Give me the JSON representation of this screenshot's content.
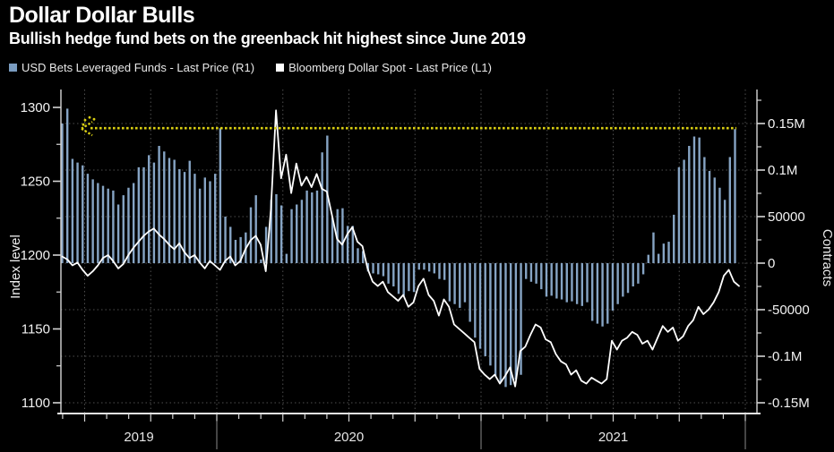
{
  "header": {
    "title": "Dollar Dollar Bulls",
    "subtitle": "Bullish hedge fund bets on the greenback hit highest since June 2019"
  },
  "legend": [
    {
      "label": "USD Bets Leveraged Funds - Last Price (R1)",
      "color": "#7a9cc0",
      "series": "bars"
    },
    {
      "label": "Bloomberg Dollar Spot - Last Price (L1)",
      "color": "#ffffff",
      "series": "line"
    }
  ],
  "chart_data": {
    "type": "combo",
    "background": "#000000",
    "grid": {
      "on": true,
      "color": "#4e4e4e",
      "vertical": "quarterly",
      "horizontal": "right-axis-ticks"
    },
    "x_axis": {
      "start_label": "2019",
      "end_label": "2021",
      "year_labels": [
        "2019",
        "2020",
        "2021"
      ],
      "range": [
        "2019-05",
        "2022-01"
      ],
      "minor_ticks": "monthly"
    },
    "left_axis": {
      "title": "Index level",
      "tick_labels": [
        "1300",
        "1250",
        "1200",
        "1150",
        "1100"
      ],
      "tick_values": [
        1300,
        1250,
        1200,
        1150,
        1100
      ],
      "minor_tick_values": [
        1275,
        1225,
        1175,
        1125
      ],
      "range": [
        1090,
        1313
      ]
    },
    "right_axis": {
      "title": "Contracts",
      "tick_labels": [
        "0.15M",
        "0.1M",
        "50000",
        "0",
        "-50000",
        "-0.1M",
        "-0.15M"
      ],
      "tick_values": [
        150000,
        100000,
        50000,
        0,
        -50000,
        -100000,
        -150000
      ],
      "minor_tick_step": 25000,
      "range": [
        -162000,
        187000
      ]
    },
    "annotation": {
      "type": "dotted-line-with-left-arrow",
      "value": 145000,
      "color": "#d9ce12",
      "meaning": "current bullish bet level equals June 2019 high"
    },
    "series": [
      {
        "name": "USD Bets Leveraged Funds - Last Price",
        "axis": "R1",
        "type": "bar",
        "color": "#86a4c4",
        "unit": "contracts",
        "values": [
          150000,
          166000,
          112000,
          108000,
          105000,
          96000,
          90000,
          86000,
          83000,
          80000,
          78000,
          63000,
          73000,
          81000,
          86000,
          103000,
          103000,
          116000,
          108000,
          126000,
          120000,
          113000,
          111000,
          101000,
          98000,
          110000,
          96000,
          80000,
          92000,
          88000,
          96000,
          145000,
          50000,
          39000,
          25000,
          28000,
          33000,
          60000,
          73000,
          4000,
          39000,
          68000,
          74000,
          62000,
          10000,
          58000,
          63000,
          68000,
          78000,
          76000,
          78000,
          119000,
          137000,
          49000,
          58000,
          59000,
          40000,
          40000,
          16000,
          13000,
          -9000,
          -11000,
          -12000,
          -14000,
          -22000,
          -25000,
          -33000,
          -35000,
          -30000,
          -31000,
          -7000,
          -7000,
          -9000,
          -11000,
          -17000,
          -18000,
          -41000,
          -44000,
          -48000,
          -42000,
          -63000,
          -80000,
          -92000,
          -100000,
          -110000,
          -121000,
          -128000,
          -133000,
          -131000,
          -125000,
          -120000,
          -17000,
          -20000,
          -22000,
          -28000,
          -36000,
          -35000,
          -38000,
          -39000,
          -42000,
          -41000,
          -44000,
          -46000,
          -42000,
          -62000,
          -65000,
          -68000,
          -65000,
          -51000,
          -44000,
          -36000,
          -32000,
          -25000,
          -22000,
          -12000,
          9000,
          33000,
          10000,
          21000,
          23000,
          52000,
          103000,
          111000,
          126000,
          136000,
          135000,
          114000,
          99000,
          92000,
          81000,
          68000,
          114000,
          144000
        ]
      },
      {
        "name": "Bloomberg Dollar Spot - Last Price",
        "axis": "L1",
        "type": "line",
        "color": "#ffffff",
        "values": [
          1199,
          1197,
          1193,
          1195,
          1190,
          1186,
          1189,
          1193,
          1198,
          1200,
          1196,
          1191,
          1194,
          1200,
          1205,
          1209,
          1213,
          1216,
          1218,
          1214,
          1211,
          1207,
          1204,
          1208,
          1202,
          1198,
          1200,
          1195,
          1191,
          1196,
          1193,
          1190,
          1196,
          1199,
          1193,
          1196,
          1204,
          1210,
          1213,
          1207,
          1189,
          1231,
          1298,
          1252,
          1268,
          1242,
          1262,
          1247,
          1253,
          1246,
          1255,
          1245,
          1243,
          1227,
          1211,
          1207,
          1214,
          1219,
          1209,
          1206,
          1191,
          1182,
          1179,
          1182,
          1175,
          1172,
          1169,
          1173,
          1165,
          1168,
          1179,
          1184,
          1173,
          1169,
          1159,
          1170,
          1165,
          1153,
          1150,
          1147,
          1144,
          1141,
          1123,
          1119,
          1116,
          1119,
          1113,
          1118,
          1124,
          1111,
          1135,
          1138,
          1146,
          1153,
          1151,
          1143,
          1141,
          1133,
          1128,
          1126,
          1119,
          1122,
          1115,
          1113,
          1117,
          1115,
          1113,
          1116,
          1142,
          1136,
          1142,
          1144,
          1148,
          1146,
          1140,
          1142,
          1136,
          1144,
          1152,
          1148,
          1151,
          1142,
          1145,
          1152,
          1156,
          1165,
          1160,
          1163,
          1168,
          1175,
          1186,
          1190,
          1182,
          1179
        ]
      }
    ]
  }
}
